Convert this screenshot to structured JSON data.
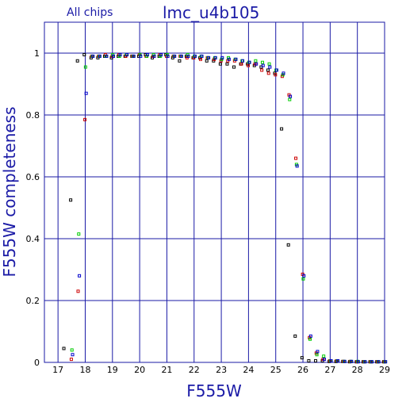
{
  "header": {
    "subtitle": "All chips",
    "title": "lmc_u4b105"
  },
  "colors": {
    "frame": "#1a1aa6",
    "grid": "#1a1aa6",
    "text": "#1a1aa6",
    "series": [
      "#000000",
      "#cc0000",
      "#00cc00",
      "#0000cc"
    ]
  },
  "chart_data": {
    "type": "scatter",
    "title": "lmc_u4b105",
    "subtitle": "All chips",
    "xlabel": "F555W",
    "ylabel": "F555W completeness",
    "xlim": [
      16.5,
      29
    ],
    "ylim": [
      0,
      1.1
    ],
    "grid": true,
    "x_ticks": [
      "17",
      "18",
      "19",
      "20",
      "21",
      "22",
      "23",
      "24",
      "25",
      "26",
      "27",
      "28",
      "29"
    ],
    "y_ticks": [
      "0",
      "0.2",
      "0.4",
      "0.6",
      "0.8",
      "1"
    ],
    "series": [
      {
        "color": "#000000",
        "points": [
          [
            17.25,
            0.045
          ],
          [
            17.5,
            0.525
          ],
          [
            17.75,
            0.975
          ],
          [
            18.0,
            0.995
          ],
          [
            18.25,
            0.985
          ],
          [
            18.5,
            0.985
          ],
          [
            18.75,
            0.99
          ],
          [
            19.0,
            0.985
          ],
          [
            19.25,
            0.99
          ],
          [
            19.5,
            0.99
          ],
          [
            19.75,
            0.99
          ],
          [
            20.0,
            0.99
          ],
          [
            20.25,
            0.995
          ],
          [
            20.5,
            0.985
          ],
          [
            20.75,
            0.99
          ],
          [
            21.0,
            0.995
          ],
          [
            21.25,
            0.985
          ],
          [
            21.5,
            0.975
          ],
          [
            21.75,
            0.99
          ],
          [
            22.0,
            0.985
          ],
          [
            22.25,
            0.985
          ],
          [
            22.5,
            0.975
          ],
          [
            22.75,
            0.975
          ],
          [
            23.0,
            0.965
          ],
          [
            23.25,
            0.965
          ],
          [
            23.5,
            0.955
          ],
          [
            23.75,
            0.965
          ],
          [
            24.0,
            0.965
          ],
          [
            24.25,
            0.96
          ],
          [
            24.5,
            0.955
          ],
          [
            24.75,
            0.945
          ],
          [
            25.0,
            0.935
          ],
          [
            25.25,
            0.755
          ],
          [
            25.5,
            0.38
          ],
          [
            25.75,
            0.085
          ],
          [
            26.0,
            0.015
          ],
          [
            26.25,
            0.005
          ],
          [
            26.5,
            0.005
          ],
          [
            26.75,
            0.005
          ],
          [
            27.0,
            0.003
          ],
          [
            27.25,
            0.003
          ],
          [
            27.5,
            0.003
          ],
          [
            27.75,
            0.002
          ],
          [
            28.0,
            0.002
          ],
          [
            28.25,
            0.002
          ],
          [
            28.5,
            0.002
          ],
          [
            28.75,
            0.002
          ],
          [
            29.0,
            0.002
          ]
        ]
      },
      {
        "color": "#cc0000",
        "points": [
          [
            17.5,
            0.01
          ],
          [
            17.75,
            0.23
          ],
          [
            18.0,
            0.785
          ],
          [
            18.25,
            0.99
          ],
          [
            18.5,
            0.99
          ],
          [
            18.75,
            0.995
          ],
          [
            19.0,
            0.99
          ],
          [
            19.25,
            0.995
          ],
          [
            19.5,
            0.99
          ],
          [
            19.75,
            0.99
          ],
          [
            20.0,
            0.995
          ],
          [
            20.25,
            0.99
          ],
          [
            20.5,
            0.99
          ],
          [
            20.75,
            0.995
          ],
          [
            21.0,
            0.99
          ],
          [
            21.25,
            0.99
          ],
          [
            21.5,
            0.99
          ],
          [
            21.75,
            0.985
          ],
          [
            22.0,
            0.985
          ],
          [
            22.25,
            0.98
          ],
          [
            22.5,
            0.985
          ],
          [
            22.75,
            0.98
          ],
          [
            23.0,
            0.975
          ],
          [
            23.25,
            0.975
          ],
          [
            23.5,
            0.975
          ],
          [
            23.75,
            0.965
          ],
          [
            24.0,
            0.96
          ],
          [
            24.25,
            0.965
          ],
          [
            24.5,
            0.945
          ],
          [
            24.75,
            0.935
          ],
          [
            25.0,
            0.93
          ],
          [
            25.25,
            0.925
          ],
          [
            25.5,
            0.865
          ],
          [
            25.75,
            0.66
          ],
          [
            26.0,
            0.285
          ],
          [
            26.25,
            0.08
          ],
          [
            26.5,
            0.03
          ],
          [
            26.75,
            0.01
          ],
          [
            27.0,
            0.005
          ],
          [
            27.25,
            0.005
          ],
          [
            27.5,
            0.003
          ],
          [
            27.75,
            0.003
          ],
          [
            28.0,
            0.002
          ],
          [
            28.25,
            0.002
          ],
          [
            28.5,
            0.002
          ],
          [
            28.75,
            0.002
          ],
          [
            29.0,
            0.002
          ]
        ]
      },
      {
        "color": "#00cc00",
        "points": [
          [
            17.5,
            0.04
          ],
          [
            17.75,
            0.415
          ],
          [
            18.0,
            0.955
          ],
          [
            18.25,
            0.99
          ],
          [
            18.5,
            0.99
          ],
          [
            18.75,
            0.99
          ],
          [
            19.0,
            0.995
          ],
          [
            19.25,
            0.99
          ],
          [
            19.5,
            0.995
          ],
          [
            19.75,
            0.99
          ],
          [
            20.0,
            0.995
          ],
          [
            20.25,
            0.99
          ],
          [
            20.5,
            0.995
          ],
          [
            20.75,
            0.99
          ],
          [
            21.0,
            0.995
          ],
          [
            21.25,
            0.99
          ],
          [
            21.5,
            0.99
          ],
          [
            21.75,
            0.995
          ],
          [
            22.0,
            0.99
          ],
          [
            22.25,
            0.99
          ],
          [
            22.5,
            0.985
          ],
          [
            22.75,
            0.985
          ],
          [
            23.0,
            0.98
          ],
          [
            23.25,
            0.985
          ],
          [
            23.5,
            0.98
          ],
          [
            23.75,
            0.975
          ],
          [
            24.0,
            0.97
          ],
          [
            24.25,
            0.975
          ],
          [
            24.5,
            0.97
          ],
          [
            24.75,
            0.965
          ],
          [
            25.0,
            0.945
          ],
          [
            25.25,
            0.93
          ],
          [
            25.5,
            0.85
          ],
          [
            25.75,
            0.64
          ],
          [
            26.0,
            0.27
          ],
          [
            26.25,
            0.075
          ],
          [
            26.5,
            0.025
          ],
          [
            26.75,
            0.02
          ],
          [
            27.0,
            0.005
          ],
          [
            27.25,
            0.005
          ],
          [
            27.5,
            0.003
          ],
          [
            27.75,
            0.003
          ],
          [
            28.0,
            0.003
          ],
          [
            28.25,
            0.002
          ],
          [
            28.5,
            0.002
          ],
          [
            28.75,
            0.002
          ],
          [
            29.0,
            0.002
          ]
        ]
      },
      {
        "color": "#0000cc",
        "points": [
          [
            17.5,
            0.025
          ],
          [
            17.75,
            0.28
          ],
          [
            18.0,
            0.87
          ],
          [
            18.25,
            0.99
          ],
          [
            18.5,
            0.99
          ],
          [
            18.75,
            0.99
          ],
          [
            19.0,
            0.99
          ],
          [
            19.25,
            0.995
          ],
          [
            19.5,
            0.995
          ],
          [
            19.75,
            0.99
          ],
          [
            20.0,
            0.99
          ],
          [
            20.25,
            0.995
          ],
          [
            20.5,
            0.99
          ],
          [
            20.75,
            0.995
          ],
          [
            21.0,
            0.99
          ],
          [
            21.25,
            0.99
          ],
          [
            21.5,
            0.99
          ],
          [
            21.75,
            0.99
          ],
          [
            22.0,
            0.99
          ],
          [
            22.25,
            0.99
          ],
          [
            22.5,
            0.985
          ],
          [
            22.75,
            0.985
          ],
          [
            23.0,
            0.985
          ],
          [
            23.25,
            0.98
          ],
          [
            23.5,
            0.98
          ],
          [
            23.75,
            0.975
          ],
          [
            24.0,
            0.97
          ],
          [
            24.25,
            0.965
          ],
          [
            24.5,
            0.96
          ],
          [
            24.75,
            0.955
          ],
          [
            25.0,
            0.945
          ],
          [
            25.25,
            0.935
          ],
          [
            25.5,
            0.86
          ],
          [
            25.75,
            0.635
          ],
          [
            26.0,
            0.28
          ],
          [
            26.25,
            0.085
          ],
          [
            26.5,
            0.035
          ],
          [
            26.75,
            0.01
          ],
          [
            27.0,
            0.005
          ],
          [
            27.25,
            0.005
          ],
          [
            27.5,
            0.003
          ],
          [
            27.75,
            0.003
          ],
          [
            28.0,
            0.002
          ],
          [
            28.25,
            0.002
          ],
          [
            28.5,
            0.002
          ],
          [
            28.75,
            0.002
          ],
          [
            29.0,
            0.002
          ]
        ]
      }
    ]
  }
}
